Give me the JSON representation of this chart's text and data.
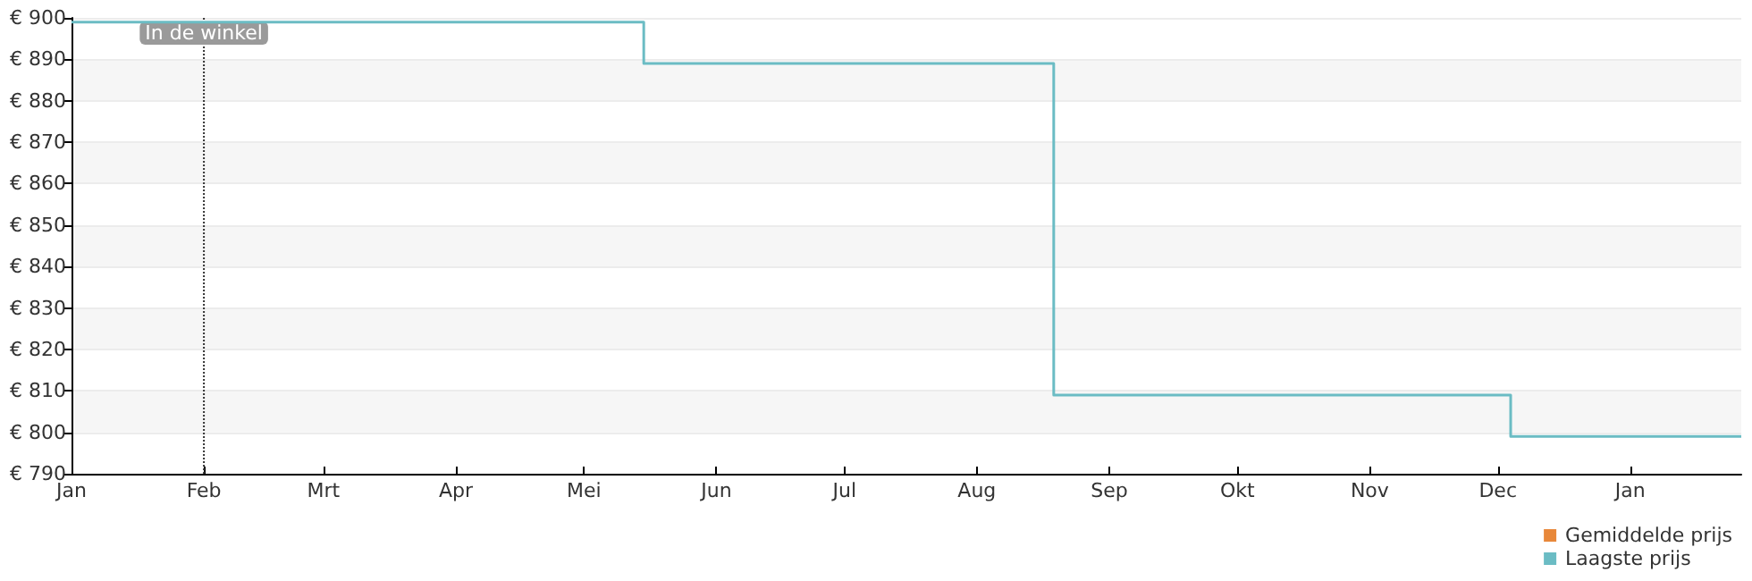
{
  "chart_data": {
    "type": "step",
    "categories": [
      "Jan",
      null,
      null,
      null,
      null,
      null,
      null,
      null,
      null,
      null,
      null,
      null,
      null,
      null,
      null,
      null,
      null,
      null,
      null,
      null,
      null,
      null,
      null,
      null,
      null,
      null,
      null,
      null,
      null,
      null,
      null,
      "Feb",
      null,
      null,
      null,
      null,
      null,
      null,
      null,
      null,
      null,
      null,
      null,
      null,
      null,
      null,
      null,
      null,
      null,
      null,
      null,
      null,
      null,
      null,
      null,
      null,
      null,
      null,
      null,
      "Mrt",
      null,
      null,
      null,
      null,
      null,
      null,
      null,
      null,
      null,
      null,
      null,
      null,
      null,
      null,
      null,
      null,
      null,
      null,
      null,
      null,
      null,
      null,
      null,
      null,
      null,
      null,
      null,
      null,
      null,
      null,
      "Apr",
      null,
      null,
      null,
      null,
      null,
      null,
      null,
      null,
      null,
      null,
      null,
      null,
      null,
      null,
      null,
      null,
      null,
      null,
      null,
      null,
      null,
      null,
      null,
      null,
      null,
      null,
      null,
      null,
      null,
      "Mei",
      null,
      null,
      null,
      null,
      null,
      null,
      null,
      null,
      null,
      null,
      null,
      null,
      null,
      null,
      null,
      null,
      null,
      null,
      null,
      null,
      null,
      null,
      null,
      null,
      null,
      null,
      null,
      null,
      null,
      null,
      "Jun",
      null,
      null,
      null,
      null,
      null,
      null,
      null,
      null,
      null,
      null,
      null,
      null,
      null,
      null,
      null,
      null,
      null,
      null,
      null,
      null,
      null,
      null,
      null,
      null,
      null,
      null,
      null,
      null,
      null,
      "Jul",
      null,
      null,
      null,
      null,
      null,
      null,
      null,
      null,
      null,
      null,
      null,
      null,
      null,
      null,
      null,
      null,
      null,
      null,
      null,
      null,
      null,
      null,
      null,
      null,
      null,
      null,
      null,
      null,
      null,
      null,
      "Aug",
      null,
      null,
      null,
      null,
      null,
      null,
      null,
      null,
      null,
      null,
      null,
      null,
      null,
      null,
      null,
      null,
      null,
      null,
      null,
      null,
      null,
      null,
      null,
      null,
      null,
      null,
      null,
      null,
      null,
      null,
      "Sep",
      null,
      null,
      null,
      null,
      null,
      null,
      null,
      null,
      null,
      null,
      null,
      null,
      null,
      null,
      null,
      null,
      null,
      null,
      null,
      null,
      null,
      null,
      null,
      null,
      null,
      null,
      null,
      null,
      null,
      "Okt",
      null,
      null,
      null,
      null,
      null,
      null,
      null,
      null,
      null,
      null,
      null,
      null,
      null,
      null,
      null,
      null,
      null,
      null,
      null,
      null,
      null,
      null,
      null,
      null,
      null,
      null,
      null,
      null,
      null,
      null,
      "Nov",
      null,
      null,
      null,
      null,
      null,
      null,
      null,
      null,
      null,
      null,
      null,
      null,
      null,
      null,
      null,
      null,
      null,
      null,
      null,
      null,
      null,
      null,
      null,
      null,
      null,
      null,
      null,
      null,
      null,
      "Dec",
      null,
      null,
      null,
      null,
      null,
      null,
      null,
      null,
      null,
      null,
      null,
      null,
      null,
      null,
      null,
      null,
      null,
      null,
      null,
      null,
      null,
      null,
      null,
      null,
      null,
      null,
      null,
      null,
      null,
      null,
      "Jan",
      null,
      null,
      null,
      null,
      null,
      null,
      null,
      null,
      null,
      null,
      null,
      null,
      null,
      null,
      null,
      null,
      null,
      null,
      null,
      null,
      null,
      null,
      null,
      null,
      null,
      null
    ],
    "series": [
      {
        "name": "Gemiddelde prijs",
        "color": "#e8883a",
        "values": [
          null,
          null,
          null,
          null,
          null,
          null,
          null,
          null,
          null,
          null,
          null,
          null,
          null,
          null,
          null,
          null,
          null,
          null,
          null,
          null,
          null,
          null,
          null,
          null,
          null,
          null,
          null,
          null,
          null,
          null,
          null,
          null,
          null,
          null,
          null,
          null,
          null,
          null,
          null,
          null,
          null,
          null,
          null,
          null,
          null,
          null,
          null,
          null,
          null,
          null,
          null,
          null,
          null,
          null,
          null,
          null,
          null,
          null,
          null,
          null,
          null,
          null,
          null,
          null,
          null,
          null,
          null,
          null,
          null,
          null,
          null,
          null,
          null,
          null,
          null,
          null,
          null,
          null,
          null,
          null,
          null,
          null,
          null,
          null,
          null,
          null,
          null,
          null,
          null,
          null,
          null,
          null,
          null,
          null,
          null,
          null,
          null,
          null,
          null,
          null,
          null,
          null,
          null,
          null,
          null,
          null,
          null,
          null,
          null,
          null,
          null,
          null,
          null,
          null,
          null,
          null,
          null,
          null,
          null,
          null,
          null,
          null,
          null,
          null,
          null,
          null,
          null,
          null,
          null,
          null,
          null,
          null,
          null,
          null,
          null,
          null,
          null,
          null,
          null,
          null,
          null,
          null,
          null,
          null,
          null,
          null,
          null,
          null,
          null,
          null,
          null,
          null,
          null,
          null,
          null,
          null,
          null,
          null,
          null,
          null,
          null,
          null,
          null,
          null,
          null,
          null,
          null,
          null,
          null,
          null,
          null,
          null,
          null,
          null,
          null,
          null,
          null,
          null,
          null,
          null,
          null,
          null,
          null,
          null,
          null,
          null,
          null,
          null,
          null,
          null,
          null,
          null,
          null,
          null,
          null,
          null,
          null,
          null,
          null,
          null,
          null,
          null,
          null,
          null,
          null,
          null,
          null,
          null,
          null,
          null,
          null,
          null,
          null,
          null,
          null,
          null,
          null,
          null,
          null,
          null,
          null,
          null,
          null,
          null,
          null,
          null,
          null,
          null,
          null,
          null,
          null,
          null,
          null,
          null,
          null,
          null,
          null,
          null,
          null,
          null,
          null,
          null,
          null,
          null,
          null,
          null,
          null,
          null,
          null,
          null,
          null,
          null,
          null,
          null,
          null,
          null,
          null,
          null,
          null,
          null,
          null,
          null,
          null,
          null,
          null,
          null,
          null,
          null,
          null,
          null,
          null,
          null,
          null,
          null,
          null,
          null,
          null,
          null,
          null,
          null,
          null,
          null,
          null,
          null,
          null,
          null,
          null,
          null,
          null,
          null,
          null,
          null,
          null,
          null,
          null,
          null,
          null,
          null,
          null,
          null,
          null,
          null,
          null,
          null,
          null,
          null,
          null,
          null,
          null,
          null,
          null,
          null,
          null,
          null,
          null,
          null,
          null,
          null,
          null,
          null,
          null,
          null,
          null,
          null,
          null,
          null,
          null,
          null,
          null,
          null,
          null,
          null,
          null,
          null,
          null,
          null,
          null,
          null,
          null,
          null,
          null,
          null,
          null,
          null,
          null,
          null,
          null,
          null,
          null,
          null,
          null,
          null,
          null,
          null,
          null,
          null,
          null,
          null,
          null,
          null,
          null,
          null,
          null,
          null,
          null,
          null,
          null,
          null,
          null,
          null,
          null,
          null,
          null,
          null,
          null,
          null,
          null,
          null,
          null,
          null,
          null,
          null,
          null,
          null,
          null,
          null,
          null,
          null,
          null,
          null,
          null,
          null
        ]
      },
      {
        "name": "Laagste prijs",
        "color": "#6bbcc4",
        "values": [
          899,
          899,
          899,
          899,
          899,
          899,
          899,
          899,
          899,
          899,
          899,
          899,
          899,
          899,
          899,
          899,
          899,
          899,
          899,
          899,
          899,
          899,
          899,
          899,
          899,
          899,
          899,
          899,
          899,
          899,
          899,
          899,
          899,
          899,
          899,
          899,
          899,
          899,
          899,
          899,
          899,
          899,
          899,
          899,
          899,
          899,
          899,
          899,
          899,
          899,
          899,
          899,
          899,
          899,
          899,
          899,
          899,
          899,
          899,
          899,
          899,
          899,
          899,
          899,
          899,
          899,
          899,
          899,
          899,
          899,
          899,
          899,
          899,
          899,
          899,
          899,
          899,
          899,
          899,
          899,
          899,
          899,
          899,
          899,
          899,
          899,
          899,
          899,
          899,
          899,
          899,
          899,
          899,
          899,
          899,
          899,
          899,
          899,
          899,
          899,
          899,
          899,
          899,
          899,
          899,
          899,
          899,
          899,
          899,
          899,
          899,
          899,
          899,
          899,
          899,
          899,
          899,
          899,
          899,
          899,
          899,
          899,
          899,
          899,
          899,
          899,
          899,
          899,
          899,
          899,
          899,
          899,
          899,
          899,
          889,
          889,
          889,
          889,
          889,
          889,
          889,
          889,
          889,
          889,
          889,
          889,
          889,
          889,
          889,
          889,
          889,
          889,
          889,
          889,
          889,
          889,
          889,
          889,
          889,
          889,
          889,
          889,
          889,
          889,
          889,
          889,
          889,
          889,
          889,
          889,
          889,
          889,
          889,
          889,
          889,
          889,
          889,
          889,
          889,
          889,
          889,
          889,
          889,
          889,
          889,
          889,
          889,
          889,
          889,
          889,
          889,
          889,
          889,
          889,
          889,
          889,
          889,
          889,
          889,
          889,
          889,
          889,
          889,
          889,
          889,
          889,
          889,
          889,
          889,
          889,
          889,
          889,
          889,
          889,
          889,
          889,
          889,
          889,
          889,
          889,
          889,
          889,
          889,
          889,
          889,
          889,
          889,
          889,
          889,
          889,
          809,
          809,
          809,
          809,
          809,
          809,
          809,
          809,
          809,
          809,
          809,
          809,
          809,
          809,
          809,
          809,
          809,
          809,
          809,
          809,
          809,
          809,
          809,
          809,
          809,
          809,
          809,
          809,
          809,
          809,
          809,
          809,
          809,
          809,
          809,
          809,
          809,
          809,
          809,
          809,
          809,
          809,
          809,
          809,
          809,
          809,
          809,
          809,
          809,
          809,
          809,
          809,
          809,
          809,
          809,
          809,
          809,
          809,
          809,
          809,
          809,
          809,
          809,
          809,
          809,
          809,
          809,
          809,
          809,
          809,
          809,
          809,
          809,
          809,
          809,
          809,
          809,
          809,
          809,
          809,
          809,
          809,
          809,
          809,
          809,
          809,
          809,
          809,
          809,
          809,
          809,
          809,
          809,
          809,
          809,
          809,
          809,
          809,
          809,
          809,
          809,
          809,
          809,
          809,
          809,
          809,
          809,
          799,
          799,
          799,
          799,
          799,
          799,
          799,
          799,
          799,
          799,
          799,
          799,
          799,
          799,
          799,
          799,
          799,
          799,
          799,
          799,
          799,
          799,
          799,
          799,
          799,
          799,
          799,
          799,
          799,
          799,
          799,
          799,
          799,
          799,
          799,
          799,
          799,
          799,
          799,
          799,
          799,
          799,
          799,
          799,
          799,
          799,
          799,
          799,
          799,
          799,
          799,
          799,
          799,
          799,
          799
        ]
      }
    ],
    "ylim": [
      790,
      900
    ],
    "yticks": [
      {
        "value": 790,
        "label": "€ 790"
      },
      {
        "value": 800,
        "label": "€ 800"
      },
      {
        "value": 810,
        "label": "€ 810"
      },
      {
        "value": 820,
        "label": "€ 820"
      },
      {
        "value": 830,
        "label": "€ 830"
      },
      {
        "value": 840,
        "label": "€ 840"
      },
      {
        "value": 850,
        "label": "€ 850"
      },
      {
        "value": 860,
        "label": "€ 860"
      },
      {
        "value": 870,
        "label": "€ 870"
      },
      {
        "value": 880,
        "label": "€ 880"
      },
      {
        "value": 890,
        "label": "€ 890"
      },
      {
        "value": 900,
        "label": "€ 900"
      }
    ],
    "ref_lines": [
      {
        "axis": "x",
        "value": "Feb",
        "label": "In de winkel",
        "color": "#333333",
        "line_style": "dotted"
      }
    ],
    "grid": "y",
    "legend": "bottom right",
    "marker": "none",
    "line_style": "solid"
  }
}
